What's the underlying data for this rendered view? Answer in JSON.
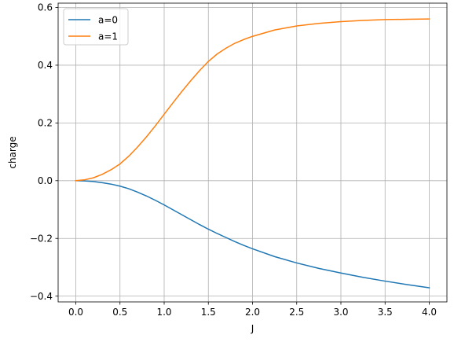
{
  "chart_data": {
    "type": "line",
    "title": "",
    "xlabel": "J",
    "ylabel": "charge",
    "xlim": [
      -0.2,
      4.2
    ],
    "ylim": [
      -0.42,
      0.615
    ],
    "xticks": [
      0.0,
      0.5,
      1.0,
      1.5,
      2.0,
      2.5,
      3.0,
      3.5,
      4.0
    ],
    "xtick_labels": [
      "0.0",
      "0.5",
      "1.0",
      "1.5",
      "2.0",
      "2.5",
      "3.0",
      "3.5",
      "4.0"
    ],
    "yticks": [
      -0.4,
      -0.2,
      0.0,
      0.2,
      0.4,
      0.6
    ],
    "ytick_labels": [
      "−0.4",
      "−0.2",
      "0.0",
      "0.2",
      "0.4",
      "0.6"
    ],
    "grid": true,
    "legend_position": "top-left",
    "x": [
      0.0,
      0.1,
      0.2,
      0.3,
      0.4,
      0.5,
      0.6,
      0.7,
      0.8,
      0.9,
      1.0,
      1.1,
      1.2,
      1.3,
      1.4,
      1.5,
      1.6,
      1.7,
      1.8,
      1.9,
      2.0,
      2.25,
      2.5,
      2.75,
      3.0,
      3.25,
      3.5,
      3.75,
      4.0
    ],
    "series": [
      {
        "name": "a=0",
        "color": "#1f77b4",
        "values": [
          0.0,
          -0.001,
          -0.003,
          -0.007,
          -0.012,
          -0.019,
          -0.028,
          -0.04,
          -0.053,
          -0.068,
          -0.084,
          -0.101,
          -0.118,
          -0.135,
          -0.152,
          -0.168,
          -0.183,
          -0.197,
          -0.211,
          -0.224,
          -0.236,
          -0.263,
          -0.285,
          -0.304,
          -0.32,
          -0.335,
          -0.348,
          -0.36,
          -0.371
        ]
      },
      {
        "name": "a=1",
        "color": "#ff7f0e",
        "values": [
          0.0,
          0.003,
          0.01,
          0.022,
          0.038,
          0.058,
          0.085,
          0.117,
          0.152,
          0.19,
          0.23,
          0.27,
          0.309,
          0.346,
          0.381,
          0.413,
          0.439,
          0.459,
          0.476,
          0.489,
          0.5,
          0.522,
          0.536,
          0.545,
          0.551,
          0.555,
          0.558,
          0.559,
          0.56
        ]
      }
    ]
  }
}
